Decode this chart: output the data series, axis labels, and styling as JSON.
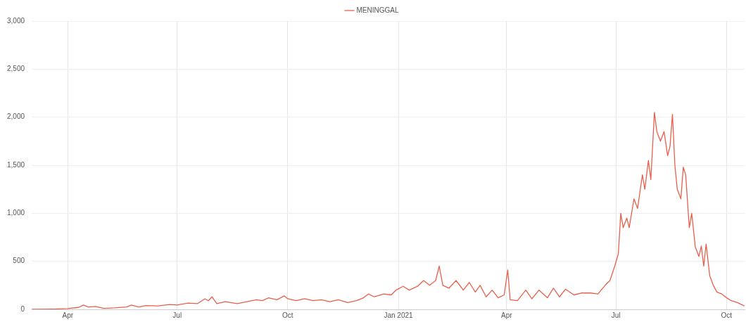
{
  "chart_data": {
    "type": "line",
    "x": [
      "2020-03-02",
      "2020-03-20",
      "2020-04-01",
      "2020-04-10",
      "2020-04-14",
      "2020-04-18",
      "2020-04-24",
      "2020-05-01",
      "2020-05-10",
      "2020-05-20",
      "2020-05-24",
      "2020-05-30",
      "2020-06-05",
      "2020-06-15",
      "2020-06-25",
      "2020-07-01",
      "2020-07-10",
      "2020-07-18",
      "2020-07-24",
      "2020-07-27",
      "2020-07-30",
      "2020-08-03",
      "2020-08-10",
      "2020-08-20",
      "2020-08-28",
      "2020-09-05",
      "2020-09-10",
      "2020-09-15",
      "2020-09-22",
      "2020-09-28",
      "2020-10-01",
      "2020-10-08",
      "2020-10-15",
      "2020-10-22",
      "2020-10-29",
      "2020-11-05",
      "2020-11-12",
      "2020-11-20",
      "2020-11-27",
      "2020-12-03",
      "2020-12-07",
      "2020-12-12",
      "2020-12-20",
      "2020-12-26",
      "2020-12-30",
      "2021-01-05",
      "2021-01-10",
      "2021-01-17",
      "2021-01-22",
      "2021-01-27",
      "2021-02-01",
      "2021-02-04",
      "2021-02-07",
      "2021-02-12",
      "2021-02-18",
      "2021-02-24",
      "2021-03-01",
      "2021-03-06",
      "2021-03-10",
      "2021-03-15",
      "2021-03-20",
      "2021-03-25",
      "2021-03-30",
      "2021-04-02",
      "2021-04-04",
      "2021-04-10",
      "2021-04-17",
      "2021-04-22",
      "2021-04-28",
      "2021-05-05",
      "2021-05-10",
      "2021-05-15",
      "2021-05-20",
      "2021-05-27",
      "2021-06-02",
      "2021-06-10",
      "2021-06-16",
      "2021-06-22",
      "2021-06-26",
      "2021-06-30",
      "2021-07-03",
      "2021-07-05",
      "2021-07-07",
      "2021-07-10",
      "2021-07-12",
      "2021-07-16",
      "2021-07-19",
      "2021-07-23",
      "2021-07-25",
      "2021-07-28",
      "2021-07-30",
      "2021-08-02",
      "2021-08-04",
      "2021-08-07",
      "2021-08-10",
      "2021-08-13",
      "2021-08-15",
      "2021-08-17",
      "2021-08-19",
      "2021-08-21",
      "2021-08-24",
      "2021-08-26",
      "2021-08-28",
      "2021-08-31",
      "2021-09-02",
      "2021-09-05",
      "2021-09-08",
      "2021-09-10",
      "2021-09-12",
      "2021-09-14",
      "2021-09-17",
      "2021-09-20",
      "2021-09-23",
      "2021-09-27",
      "2021-10-01",
      "2021-10-05",
      "2021-10-10",
      "2021-10-16"
    ],
    "series": [
      {
        "name": "MENINGGAL",
        "color": "#e8604c",
        "values": [
          0,
          3,
          8,
          20,
          45,
          25,
          30,
          10,
          15,
          25,
          45,
          25,
          40,
          35,
          50,
          45,
          65,
          60,
          110,
          90,
          130,
          60,
          80,
          60,
          80,
          100,
          90,
          120,
          100,
          140,
          110,
          90,
          110,
          90,
          100,
          80,
          100,
          70,
          90,
          120,
          160,
          130,
          160,
          150,
          200,
          240,
          200,
          240,
          300,
          250,
          300,
          450,
          250,
          220,
          300,
          200,
          280,
          180,
          250,
          130,
          200,
          120,
          150,
          410,
          100,
          90,
          200,
          110,
          200,
          120,
          220,
          130,
          210,
          150,
          170,
          170,
          160,
          250,
          300,
          450,
          580,
          1000,
          850,
          950,
          850,
          1150,
          1050,
          1400,
          1250,
          1550,
          1350,
          2050,
          1850,
          1750,
          1850,
          1600,
          1700,
          2030,
          1500,
          1250,
          1150,
          1480,
          1400,
          850,
          1000,
          650,
          550,
          660,
          450,
          680,
          350,
          250,
          180,
          160,
          120,
          90,
          70,
          35
        ]
      }
    ],
    "xlim": [
      "2020-03-02",
      "2021-10-16"
    ],
    "xticks": [
      {
        "value": "2020-04-01",
        "label": "Apr"
      },
      {
        "value": "2020-07-01",
        "label": "Jul"
      },
      {
        "value": "2020-10-01",
        "label": "Oct"
      },
      {
        "value": "2021-01-01",
        "label": "Jan 2021"
      },
      {
        "value": "2021-04-01",
        "label": "Apr"
      },
      {
        "value": "2021-07-01",
        "label": "Jul"
      },
      {
        "value": "2021-10-01",
        "label": "Oct"
      }
    ],
    "ylim": [
      0,
      3000
    ],
    "yticks": [
      0,
      500,
      {
        "value": 1000,
        "label": "1,000"
      },
      {
        "value": 1500,
        "label": "1,500"
      },
      {
        "value": 2000,
        "label": "2,000"
      },
      {
        "value": 2500,
        "label": "2,500"
      },
      {
        "value": 3000,
        "label": "3,000"
      }
    ],
    "grid": true,
    "legend": "top",
    "marker": "none",
    "line_style": "solid"
  }
}
